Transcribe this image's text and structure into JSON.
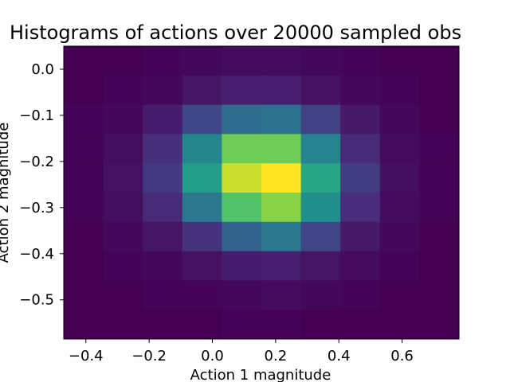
{
  "chart_data": {
    "type": "heatmap",
    "title": "Histograms of actions over 20000 sampled obs",
    "xlabel": "Action 1 magnitude",
    "ylabel": "Action 2 magnitude",
    "xlim": [
      -0.47,
      0.78
    ],
    "ylim": [
      -0.585,
      0.05
    ],
    "x_edges": [
      -0.47,
      -0.345,
      -0.22,
      -0.095,
      0.03,
      0.155,
      0.28,
      0.405,
      0.53,
      0.655,
      0.78
    ],
    "y_edges": [
      0.05,
      -0.0135,
      -0.077,
      -0.1405,
      -0.204,
      -0.2675,
      -0.331,
      -0.3945,
      -0.458,
      -0.5215,
      -0.585
    ],
    "xticks": [
      -0.4,
      -0.2,
      0.0,
      0.2,
      0.4,
      0.6
    ],
    "xtick_labels": [
      "−0.4",
      "−0.2",
      "0.0",
      "0.2",
      "0.4",
      "0.6"
    ],
    "yticks": [
      0.0,
      -0.1,
      -0.2,
      -0.3,
      -0.4,
      -0.5
    ],
    "ytick_labels": [
      "0.0",
      "−0.1",
      "−0.2",
      "−0.3",
      "−0.4",
      "−0.5"
    ],
    "colormap": "viridis",
    "counts": [
      [
        0,
        0,
        1,
        2,
        3,
        3,
        2,
        1,
        0,
        0
      ],
      [
        0,
        1,
        2,
        6,
        9,
        9,
        5,
        2,
        1,
        0
      ],
      [
        1,
        2,
        8,
        22,
        36,
        38,
        20,
        7,
        2,
        0
      ],
      [
        1,
        4,
        14,
        46,
        78,
        78,
        45,
        12,
        3,
        1
      ],
      [
        1,
        5,
        17,
        55,
        92,
        100,
        60,
        18,
        4,
        1
      ],
      [
        1,
        4,
        12,
        40,
        72,
        82,
        50,
        13,
        3,
        1
      ],
      [
        0,
        2,
        6,
        15,
        32,
        40,
        21,
        7,
        2,
        0
      ],
      [
        0,
        1,
        2,
        5,
        8,
        9,
        6,
        3,
        1,
        0
      ],
      [
        0,
        0,
        1,
        1,
        2,
        3,
        2,
        1,
        0,
        0
      ],
      [
        0,
        0,
        0,
        0,
        1,
        1,
        0,
        0,
        0,
        0
      ]
    ]
  }
}
